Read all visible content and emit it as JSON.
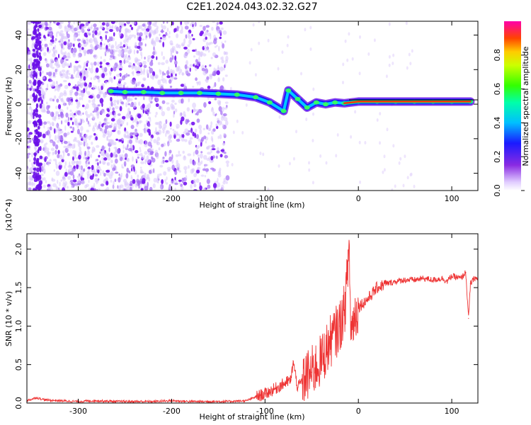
{
  "title": "C2E1.2024.043.02.32.G27",
  "chart_data": [
    {
      "type": "heatmap",
      "xlabel": "Height of straight line (km)",
      "ylabel": "Frequency (Hz)",
      "xlim": [
        -355,
        128
      ],
      "ylim": [
        -50,
        48
      ],
      "xticks": [
        -300,
        -200,
        -100,
        0,
        100
      ],
      "xtick_labels": [
        "-300",
        "-200",
        "-100",
        "0",
        "100"
      ],
      "yticks": [
        -40,
        -20,
        0,
        20,
        40
      ],
      "ytick_labels": [
        "-40",
        "-20",
        "0",
        "20",
        "40"
      ],
      "colorbar": {
        "label": "Normalized spectral amplitude",
        "range": [
          0,
          1
        ],
        "ticks": [
          0.0,
          0.2,
          0.4,
          0.6,
          0.8
        ],
        "tick_labels": [
          "0.0",
          "0.2",
          "0.4",
          "0.6",
          "0.8"
        ]
      },
      "ridge": [
        {
          "x": -265,
          "y": 7.5
        },
        {
          "x": -250,
          "y": 7.0
        },
        {
          "x": -230,
          "y": 7.0
        },
        {
          "x": -210,
          "y": 6.5
        },
        {
          "x": -190,
          "y": 6.5
        },
        {
          "x": -170,
          "y": 6.5
        },
        {
          "x": -150,
          "y": 6.0
        },
        {
          "x": -130,
          "y": 5.5
        },
        {
          "x": -110,
          "y": 4.0
        },
        {
          "x": -95,
          "y": 1.0
        },
        {
          "x": -80,
          "y": -4.0
        },
        {
          "x": -75,
          "y": 8.0
        },
        {
          "x": -65,
          "y": 3.0
        },
        {
          "x": -55,
          "y": -2.0
        },
        {
          "x": -45,
          "y": 1.0
        },
        {
          "x": -35,
          "y": 0.0
        },
        {
          "x": -25,
          "y": 1.0
        },
        {
          "x": -15,
          "y": 0.5
        },
        {
          "x": 0,
          "y": 1.5
        },
        {
          "x": 20,
          "y": 1.5
        },
        {
          "x": 40,
          "y": 1.5
        },
        {
          "x": 60,
          "y": 1.5
        },
        {
          "x": 80,
          "y": 1.5
        },
        {
          "x": 100,
          "y": 1.5
        },
        {
          "x": 120,
          "y": 1.5
        }
      ]
    },
    {
      "type": "line",
      "xlabel": "Height of straight line (km)",
      "ylabel": "SNR (10 * v/v)",
      "y_multiplier": "(x10^4)",
      "xlim": [
        -355,
        128
      ],
      "ylim": [
        0,
        2.2
      ],
      "xticks": [
        -300,
        -200,
        -100,
        0,
        100
      ],
      "xtick_labels": [
        "-300",
        "-200",
        "-100",
        "0",
        "100"
      ],
      "yticks": [
        0.0,
        0.5,
        1.0,
        1.5,
        2.0
      ],
      "ytick_labels": [
        "0.0",
        "0.5",
        "1.0",
        "1.5",
        "2.0"
      ],
      "color": "#ee3333",
      "series": [
        {
          "x": [
            -355,
            -345,
            -335,
            -320,
            -300,
            -280,
            -260,
            -240,
            -220,
            -200,
            -180,
            -160,
            -140,
            -120,
            -110,
            -100,
            -90,
            -80,
            -72,
            -70,
            -65,
            -60,
            -50,
            -40,
            -30,
            -20,
            -15,
            -12,
            -10,
            -8,
            -5,
            0,
            10,
            20,
            30,
            40,
            50,
            60,
            70,
            80,
            90,
            95,
            100,
            110,
            115,
            118,
            120,
            125,
            128
          ],
          "y": [
            0.03,
            0.07,
            0.04,
            0.03,
            0.02,
            0.03,
            0.02,
            0.02,
            0.02,
            0.03,
            0.02,
            0.02,
            0.02,
            0.03,
            0.08,
            0.12,
            0.18,
            0.25,
            0.3,
            0.55,
            0.2,
            0.3,
            0.4,
            0.55,
            0.8,
            1.0,
            1.2,
            1.6,
            2.1,
            0.9,
            1.1,
            1.25,
            1.35,
            1.5,
            1.55,
            1.58,
            1.6,
            1.6,
            1.62,
            1.6,
            1.62,
            1.58,
            1.65,
            1.62,
            1.7,
            1.1,
            1.55,
            1.63,
            1.6
          ]
        }
      ]
    }
  ]
}
